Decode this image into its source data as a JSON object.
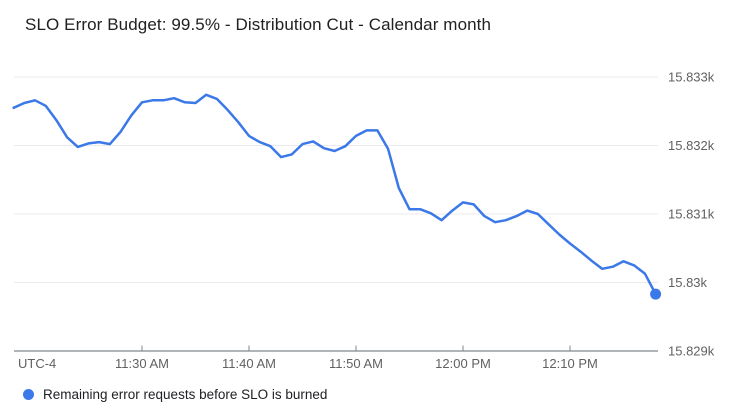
{
  "header": {
    "title": "SLO Error Budget: 99.5% - Distribution Cut - Calendar month"
  },
  "legend": {
    "label": "Remaining error requests before SLO is burned"
  },
  "chart_data": {
    "type": "line",
    "title": "SLO Error Budget: 99.5% - Distribution Cut - Calendar month",
    "legend_position": "bottom-left",
    "grid": "horizontal-only",
    "colors": {
      "line": "#3b78e8",
      "end_dot": "#3b78e8",
      "grid": "#ebebeb",
      "axis": "#80868b",
      "label": "#616161",
      "title_text": "#212124",
      "legend_text": "#202124",
      "background": "#ffffff"
    },
    "x_axis": {
      "timezone_label": "UTC-4",
      "ticks": [
        {
          "time": "11:30",
          "label": "11:30 AM"
        },
        {
          "time": "11:40",
          "label": "11:40 AM"
        },
        {
          "time": "11:50",
          "label": "11:50 AM"
        },
        {
          "time": "12:00",
          "label": "12:00 PM"
        },
        {
          "time": "12:10",
          "label": "12:10 PM"
        }
      ],
      "range": [
        "11:18",
        "12:18"
      ]
    },
    "y_axis": {
      "side": "right",
      "ticks": [
        {
          "value": 15833,
          "label": "15.833k"
        },
        {
          "value": 15832,
          "label": "15.832k"
        },
        {
          "value": 15831,
          "label": "15.831k"
        },
        {
          "value": 15830,
          "label": "15.83k"
        },
        {
          "value": 15829,
          "label": "15.829k"
        }
      ],
      "baseline_value": 15829,
      "range": [
        15829,
        15833.1
      ]
    },
    "series": [
      {
        "name": "Remaining error requests before SLO is burned",
        "color": "#3b78e8",
        "end_marker": true,
        "points": [
          {
            "t": "11:18",
            "v": 15832.55
          },
          {
            "t": "11:19",
            "v": 15832.62
          },
          {
            "t": "11:20",
            "v": 15832.66
          },
          {
            "t": "11:21",
            "v": 15832.58
          },
          {
            "t": "11:22",
            "v": 15832.37
          },
          {
            "t": "11:23",
            "v": 15832.12
          },
          {
            "t": "11:24",
            "v": 15831.98
          },
          {
            "t": "11:25",
            "v": 15832.03
          },
          {
            "t": "11:26",
            "v": 15832.05
          },
          {
            "t": "11:27",
            "v": 15832.02
          },
          {
            "t": "11:28",
            "v": 15832.2
          },
          {
            "t": "11:29",
            "v": 15832.44
          },
          {
            "t": "11:30",
            "v": 15832.63
          },
          {
            "t": "11:31",
            "v": 15832.66
          },
          {
            "t": "11:32",
            "v": 15832.66
          },
          {
            "t": "11:33",
            "v": 15832.69
          },
          {
            "t": "11:34",
            "v": 15832.63
          },
          {
            "t": "11:35",
            "v": 15832.62
          },
          {
            "t": "11:36",
            "v": 15832.74
          },
          {
            "t": "11:37",
            "v": 15832.68
          },
          {
            "t": "11:38",
            "v": 15832.52
          },
          {
            "t": "11:39",
            "v": 15832.34
          },
          {
            "t": "11:40",
            "v": 15832.14
          },
          {
            "t": "11:41",
            "v": 15832.05
          },
          {
            "t": "11:42",
            "v": 15831.99
          },
          {
            "t": "11:43",
            "v": 15831.83
          },
          {
            "t": "11:44",
            "v": 15831.87
          },
          {
            "t": "11:45",
            "v": 15832.02
          },
          {
            "t": "11:46",
            "v": 15832.06
          },
          {
            "t": "11:47",
            "v": 15831.96
          },
          {
            "t": "11:48",
            "v": 15831.92
          },
          {
            "t": "11:49",
            "v": 15831.99
          },
          {
            "t": "11:50",
            "v": 15832.14
          },
          {
            "t": "11:51",
            "v": 15832.22
          },
          {
            "t": "11:52",
            "v": 15832.22
          },
          {
            "t": "11:53",
            "v": 15831.95
          },
          {
            "t": "11:54",
            "v": 15831.38
          },
          {
            "t": "11:55",
            "v": 15831.07
          },
          {
            "t": "11:56",
            "v": 15831.07
          },
          {
            "t": "11:57",
            "v": 15831.01
          },
          {
            "t": "11:58",
            "v": 15830.91
          },
          {
            "t": "11:59",
            "v": 15831.05
          },
          {
            "t": "12:00",
            "v": 15831.17
          },
          {
            "t": "12:01",
            "v": 15831.14
          },
          {
            "t": "12:02",
            "v": 15830.97
          },
          {
            "t": "12:03",
            "v": 15830.88
          },
          {
            "t": "12:04",
            "v": 15830.91
          },
          {
            "t": "12:05",
            "v": 15830.97
          },
          {
            "t": "12:06",
            "v": 15831.05
          },
          {
            "t": "12:07",
            "v": 15831.0
          },
          {
            "t": "12:08",
            "v": 15830.85
          },
          {
            "t": "12:09",
            "v": 15830.7
          },
          {
            "t": "12:10",
            "v": 15830.57
          },
          {
            "t": "12:11",
            "v": 15830.45
          },
          {
            "t": "12:12",
            "v": 15830.32
          },
          {
            "t": "12:13",
            "v": 15830.2
          },
          {
            "t": "12:14",
            "v": 15830.23
          },
          {
            "t": "12:15",
            "v": 15830.31
          },
          {
            "t": "12:16",
            "v": 15830.25
          },
          {
            "t": "12:17",
            "v": 15830.13
          },
          {
            "t": "12:18",
            "v": 15829.83
          }
        ]
      }
    ]
  }
}
